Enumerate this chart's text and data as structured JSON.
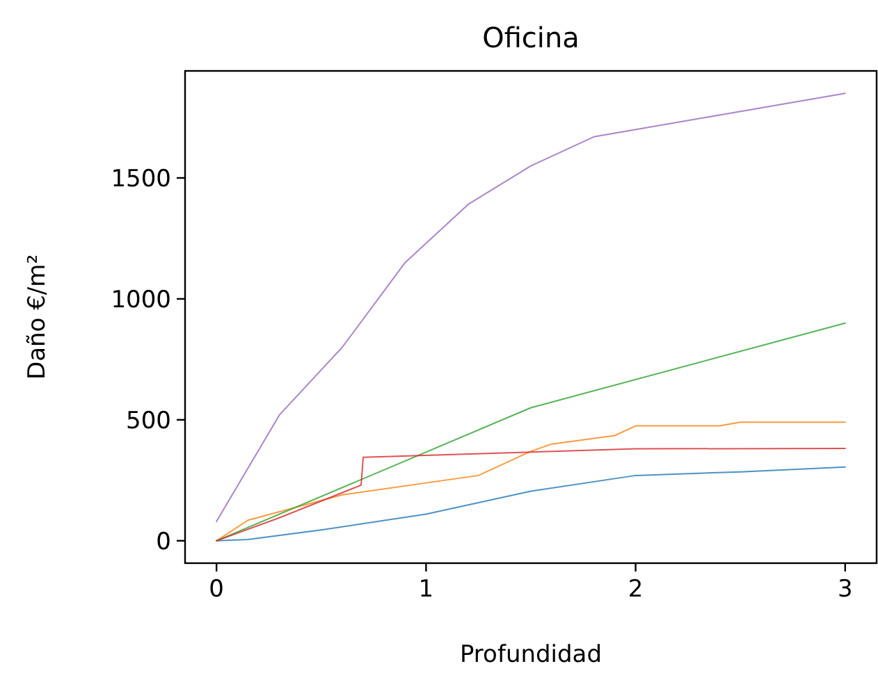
{
  "chart_data": {
    "type": "line",
    "title": "Oficina",
    "xlabel": "Profundidad",
    "ylabel": "Daño €/m²",
    "xlim": [
      -0.15,
      3.15
    ],
    "ylim": [
      -92.5,
      1942.5
    ],
    "xticks": [
      0,
      1,
      2,
      3
    ],
    "yticks": [
      0,
      500,
      1000,
      1500
    ],
    "grid": false,
    "marker": "none",
    "line_style": "solid",
    "series": [
      {
        "color": "#1f77b4",
        "x": [
          0,
          0.15,
          0.5,
          1,
          1.5,
          2,
          2.5,
          3
        ],
        "values": [
          0,
          5,
          45,
          110,
          205,
          270,
          285,
          305
        ]
      },
      {
        "color": "#ff7f0e",
        "x": [
          0,
          0.15,
          0.6,
          1.25,
          1.5,
          1.6,
          1.9,
          2,
          2.4,
          2.5,
          3
        ],
        "values": [
          0,
          85,
          190,
          270,
          370,
          400,
          435,
          475,
          475,
          490,
          490
        ]
      },
      {
        "color": "#2ca02c",
        "x": [
          0,
          1.5,
          3
        ],
        "values": [
          0,
          550,
          900
        ]
      },
      {
        "color": "#d62728",
        "x": [
          0,
          0.3,
          0.69,
          0.7,
          2,
          3
        ],
        "values": [
          0,
          95,
          230,
          345,
          380,
          382
        ]
      },
      {
        "color": "#9467bd",
        "x": [
          0,
          0.3,
          0.6,
          0.9,
          1.2,
          1.5,
          1.8,
          2.4,
          3
        ],
        "values": [
          80,
          520,
          800,
          1150,
          1390,
          1550,
          1670,
          1760,
          1850
        ]
      }
    ]
  }
}
